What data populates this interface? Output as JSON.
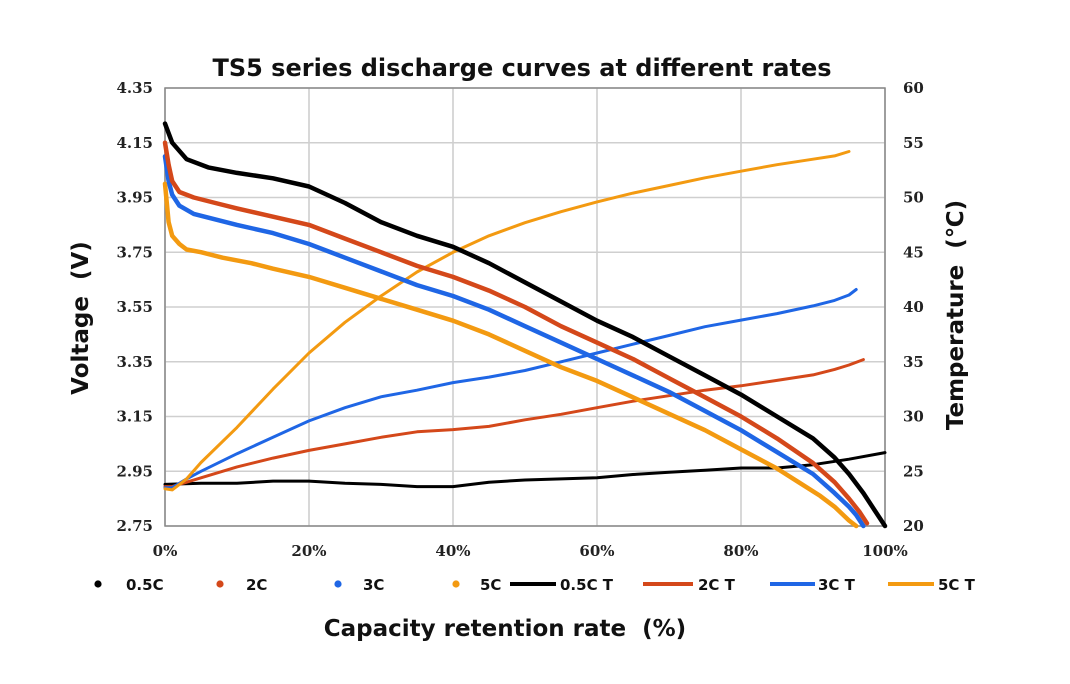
{
  "chart_data": {
    "type": "line",
    "title": "TS5 series discharge curves at different rates",
    "xlabel": "Capacity retention rate  (%)",
    "ylabel": "Voltage  (V)",
    "y2label": "Temperature  (℃)",
    "xlim": [
      0,
      100
    ],
    "ylim": [
      2.75,
      4.35
    ],
    "y2lim": [
      20,
      60
    ],
    "x_ticks": [
      "0%",
      "20%",
      "40%",
      "60%",
      "80%",
      "100%"
    ],
    "y_ticks": [
      "4.35",
      "4.15",
      "3.95",
      "3.75",
      "3.55",
      "3.35",
      "3.15",
      "2.95",
      "2.75"
    ],
    "y2_ticks": [
      "60",
      "55",
      "50",
      "45",
      "40",
      "35",
      "30",
      "25",
      "20"
    ],
    "grid": true,
    "legend_position": "bottom",
    "legend": [
      "0.5C",
      "2C",
      "3C",
      "5C",
      "0.5C T",
      "2C T",
      "3C T",
      "5C T"
    ],
    "series": [
      {
        "name": "0.5C",
        "axis": "left",
        "color": "#000000",
        "x": [
          0,
          1,
          3,
          6,
          10,
          15,
          20,
          25,
          30,
          35,
          40,
          45,
          50,
          55,
          60,
          65,
          70,
          75,
          80,
          85,
          90,
          93,
          95,
          97,
          98.5,
          100
        ],
        "y": [
          4.22,
          4.15,
          4.09,
          4.06,
          4.04,
          4.02,
          3.99,
          3.93,
          3.86,
          3.81,
          3.77,
          3.71,
          3.64,
          3.57,
          3.5,
          3.44,
          3.37,
          3.3,
          3.23,
          3.15,
          3.07,
          3.0,
          2.94,
          2.87,
          2.81,
          2.75
        ]
      },
      {
        "name": "2C",
        "axis": "left",
        "color": "#d4481a",
        "x": [
          0,
          0.5,
          1,
          2,
          4,
          7,
          10,
          15,
          20,
          25,
          30,
          35,
          40,
          45,
          50,
          55,
          60,
          65,
          70,
          75,
          80,
          85,
          90,
          93,
          95,
          96.5,
          97.5
        ],
        "y": [
          4.15,
          4.07,
          4.01,
          3.97,
          3.95,
          3.93,
          3.91,
          3.88,
          3.85,
          3.8,
          3.75,
          3.7,
          3.66,
          3.61,
          3.55,
          3.48,
          3.42,
          3.36,
          3.29,
          3.22,
          3.15,
          3.07,
          2.98,
          2.91,
          2.85,
          2.8,
          2.76
        ]
      },
      {
        "name": "3C",
        "axis": "left",
        "color": "#1f66e5",
        "x": [
          0,
          0.5,
          1,
          2,
          4,
          7,
          10,
          15,
          20,
          25,
          30,
          35,
          40,
          45,
          50,
          55,
          60,
          65,
          70,
          75,
          80,
          85,
          90,
          93,
          95,
          96,
          97
        ],
        "y": [
          4.1,
          4.01,
          3.96,
          3.92,
          3.89,
          3.87,
          3.85,
          3.82,
          3.78,
          3.73,
          3.68,
          3.63,
          3.59,
          3.54,
          3.48,
          3.42,
          3.36,
          3.3,
          3.24,
          3.17,
          3.1,
          3.02,
          2.94,
          2.87,
          2.82,
          2.79,
          2.75
        ]
      },
      {
        "name": "5C",
        "axis": "left",
        "color": "#f39a11",
        "x": [
          0,
          0.5,
          1,
          2,
          3,
          5,
          8,
          12,
          15,
          20,
          25,
          30,
          35,
          40,
          45,
          50,
          55,
          60,
          65,
          70,
          75,
          80,
          85,
          88,
          91,
          93,
          95,
          96
        ],
        "y": [
          4.0,
          3.86,
          3.81,
          3.78,
          3.76,
          3.75,
          3.73,
          3.71,
          3.69,
          3.66,
          3.62,
          3.58,
          3.54,
          3.5,
          3.45,
          3.39,
          3.33,
          3.28,
          3.22,
          3.16,
          3.1,
          3.03,
          2.96,
          2.91,
          2.86,
          2.82,
          2.77,
          2.75
        ]
      },
      {
        "name": "0.5C T",
        "axis": "right",
        "color": "#000000",
        "x": [
          0,
          5,
          10,
          15,
          20,
          25,
          30,
          35,
          40,
          45,
          50,
          55,
          60,
          65,
          70,
          75,
          80,
          85,
          90,
          95,
          100
        ],
        "y": [
          23.8,
          23.9,
          23.9,
          24.1,
          24.1,
          23.9,
          23.8,
          23.6,
          23.6,
          24.0,
          24.2,
          24.3,
          24.4,
          24.7,
          24.9,
          25.1,
          25.3,
          25.3,
          25.6,
          26.1,
          26.7
        ]
      },
      {
        "name": "2C T",
        "axis": "right",
        "color": "#d4481a",
        "x": [
          0,
          1,
          3,
          5,
          10,
          15,
          20,
          25,
          30,
          35,
          40,
          45,
          50,
          55,
          60,
          65,
          70,
          75,
          80,
          85,
          90,
          93,
          95,
          97
        ],
        "y": [
          23.6,
          23.6,
          24.0,
          24.4,
          25.4,
          26.2,
          26.9,
          27.5,
          28.1,
          28.6,
          28.8,
          29.1,
          29.7,
          30.2,
          30.8,
          31.4,
          31.9,
          32.4,
          32.8,
          33.3,
          33.8,
          34.3,
          34.7,
          35.2
        ]
      },
      {
        "name": "3C T",
        "axis": "right",
        "color": "#1f66e5",
        "x": [
          0,
          1,
          3,
          5,
          10,
          15,
          20,
          25,
          30,
          35,
          40,
          45,
          50,
          55,
          60,
          65,
          70,
          75,
          80,
          85,
          90,
          93,
          95,
          96
        ],
        "y": [
          23.5,
          23.5,
          24.3,
          25.0,
          26.6,
          28.1,
          29.6,
          30.8,
          31.8,
          32.4,
          33.1,
          33.6,
          34.2,
          35.0,
          35.8,
          36.6,
          37.4,
          38.2,
          38.8,
          39.4,
          40.1,
          40.6,
          41.1,
          41.6
        ]
      },
      {
        "name": "5C T",
        "axis": "right",
        "color": "#f39a11",
        "x": [
          0,
          1,
          3,
          5,
          10,
          15,
          20,
          25,
          30,
          35,
          40,
          45,
          50,
          55,
          60,
          65,
          70,
          75,
          80,
          85,
          90,
          93,
          95
        ],
        "y": [
          23.4,
          23.3,
          24.3,
          25.8,
          29.0,
          32.5,
          35.8,
          38.6,
          41.0,
          43.2,
          45.0,
          46.5,
          47.7,
          48.7,
          49.6,
          50.4,
          51.1,
          51.8,
          52.4,
          53.0,
          53.5,
          53.8,
          54.2
        ]
      }
    ]
  }
}
